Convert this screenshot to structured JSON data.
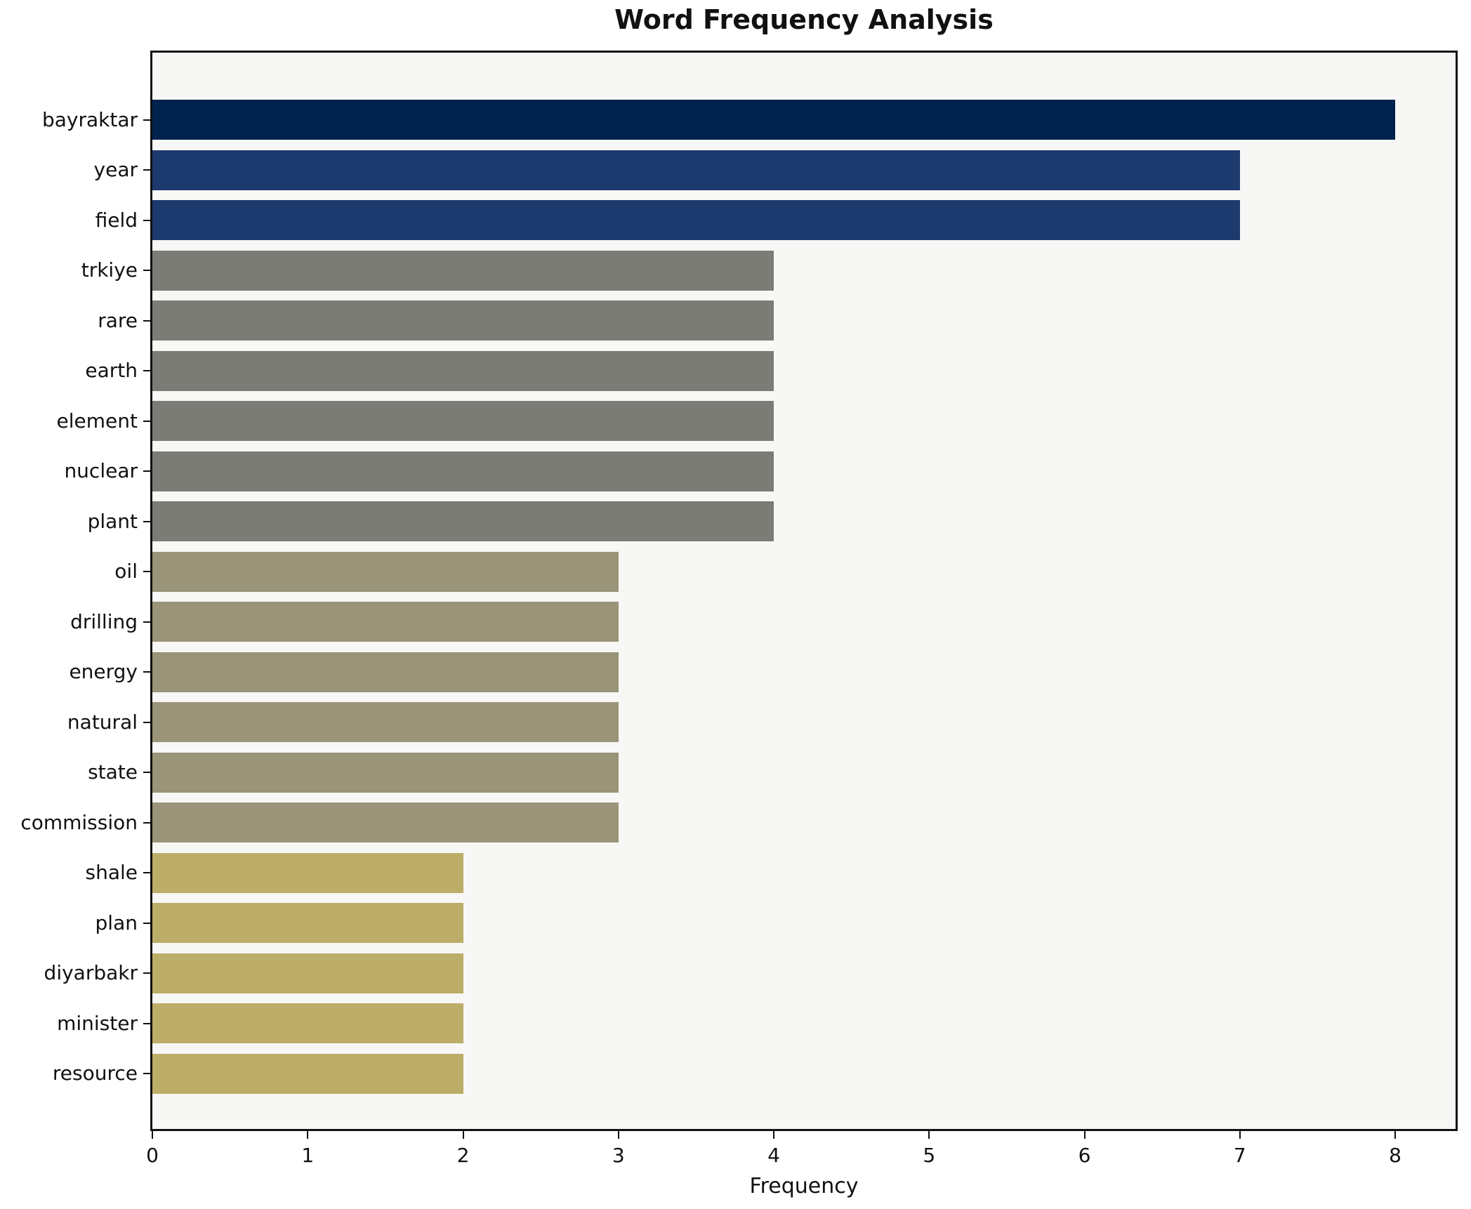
{
  "title": "Word Frequency Analysis",
  "xlabel": "Frequency",
  "plot_background": "#f7f7f6",
  "spine_color": "#111111",
  "chart_data": {
    "type": "bar",
    "orientation": "horizontal",
    "title": "Word Frequency Analysis",
    "xlabel": "Frequency",
    "ylabel": "",
    "xlim": [
      0,
      8.4
    ],
    "x_ticks": [
      0,
      1,
      2,
      3,
      4,
      5,
      6,
      7,
      8
    ],
    "grid": false,
    "legend": false,
    "categories": [
      "bayraktar",
      "year",
      "field",
      "trkiye",
      "rare",
      "earth",
      "element",
      "nuclear",
      "plant",
      "oil",
      "drilling",
      "energy",
      "natural",
      "state",
      "commission",
      "shale",
      "plan",
      "diyarbakr",
      "minister",
      "resource"
    ],
    "values": [
      8,
      7,
      7,
      4,
      4,
      4,
      4,
      4,
      4,
      3,
      3,
      3,
      3,
      3,
      3,
      2,
      2,
      2,
      2,
      2
    ],
    "bar_colors": [
      "#00224e",
      "#1d3a6e",
      "#1d3a6e",
      "#7b7c76",
      "#7b7c76",
      "#7b7c76",
      "#7b7c76",
      "#7b7c76",
      "#7b7c76",
      "#9a9478",
      "#9a9478",
      "#9a9478",
      "#9a9478",
      "#9a9478",
      "#9a9478",
      "#bcad68",
      "#bcad68",
      "#bcad68",
      "#bcad68",
      "#bcad68"
    ]
  }
}
